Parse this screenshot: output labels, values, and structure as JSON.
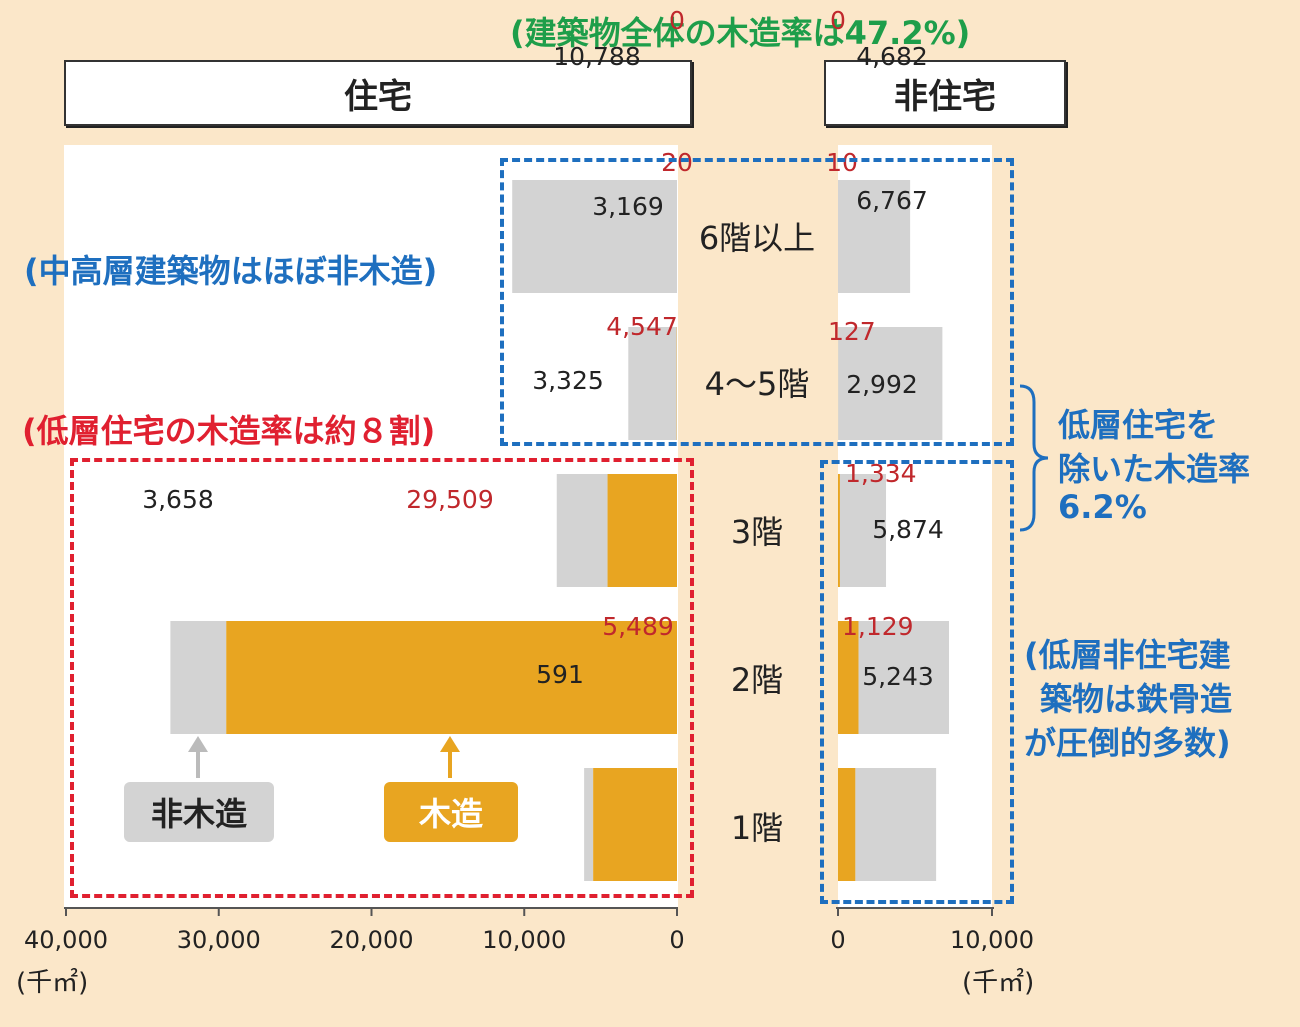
{
  "notes": {
    "overall": "(建築物全体の木造率は47.2%)",
    "mid_high": "(中高層建築物はほぼ非木造)",
    "low_res": "(低層住宅の木造率は約８割)",
    "excl_line1": "低層住宅を",
    "excl_line2": "除いた木造率",
    "excl_line3": "6.2%",
    "nonres_line1": "(低層非住宅建",
    "nonres_line2": "築物は鉄骨造",
    "nonres_line3": "が圧倒的多数)"
  },
  "headers": {
    "residential": "住宅",
    "non_residential": "非住宅"
  },
  "legend": {
    "non_wood": "非木造",
    "wood": "木造"
  },
  "units": {
    "left": "(千㎡)",
    "right": "(千㎡)"
  },
  "colors": {
    "wood": "#E8A521",
    "non_wood": "#D3D3D3",
    "wood_label": "#C0282C",
    "overall_note": "#1E9E4A",
    "blue_note": "#1E6FBF",
    "red_note": "#E02030"
  },
  "chart_data": {
    "type": "bar",
    "orientation": "horizontal-butterfly",
    "categories": [
      "6階以上",
      "4〜5階",
      "3階",
      "2階",
      "1階"
    ],
    "value_labels": {
      "residential_wood": [
        "0",
        "20",
        "4,547",
        "29,509",
        "5,489"
      ],
      "residential_non_wood": [
        "10,788",
        "3,169",
        "3,325",
        "3,658",
        "591"
      ],
      "non_residential_wood": [
        "0",
        "10",
        "127",
        "1,334",
        "1,129"
      ],
      "non_residential_non_wood": [
        "4,682",
        "6,767",
        "2,992",
        "5,874",
        "5,243"
      ]
    },
    "series": [
      {
        "name": "住宅 木造",
        "values": [
          0,
          20,
          4547,
          29509,
          5489
        ]
      },
      {
        "name": "住宅 非木造",
        "values": [
          10788,
          3169,
          3325,
          3658,
          591
        ]
      },
      {
        "name": "非住宅 木造",
        "values": [
          0,
          10,
          127,
          1334,
          1129
        ]
      },
      {
        "name": "非住宅 非木造",
        "values": [
          4682,
          6767,
          2992,
          5874,
          5243
        ]
      }
    ],
    "left_axis": {
      "range": [
        40000,
        0
      ],
      "ticks": [
        "40,000",
        "30,000",
        "20,000",
        "10,000",
        "0"
      ],
      "unit": "(千㎡)"
    },
    "right_axis": {
      "range": [
        0,
        10000
      ],
      "ticks": [
        "0",
        "10,000"
      ],
      "unit": "(千㎡)"
    },
    "grid": false
  }
}
